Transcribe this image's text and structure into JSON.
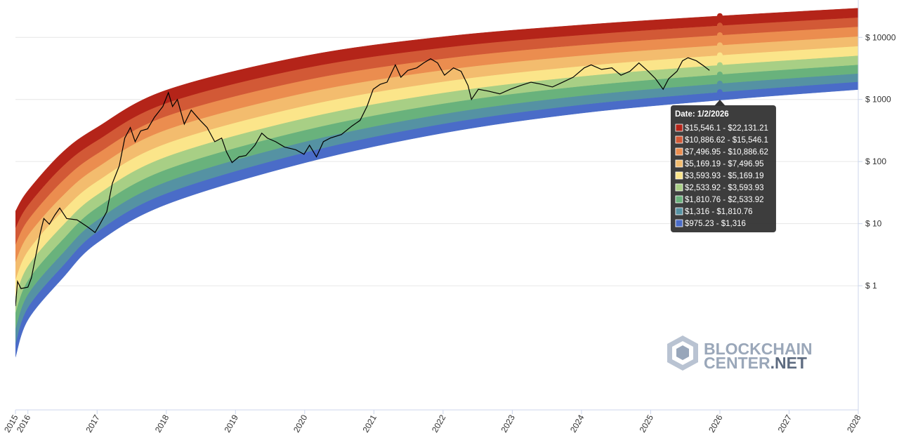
{
  "chart_data": {
    "type": "rainbow",
    "xlim": [
      2015.82,
      2028
    ],
    "xticks": [
      {
        "value": 2015.82,
        "label": "2015"
      },
      2016,
      2017,
      2018,
      2019,
      2020,
      2021,
      2022,
      2023,
      2024,
      2025,
      2026,
      2027,
      2028
    ],
    "ylim": [
      0.01,
      40000
    ],
    "log_y": true,
    "grid": true,
    "yticks": [
      {
        "value": 1,
        "label": "$ 1"
      },
      {
        "value": 10,
        "label": "$ 10"
      },
      {
        "value": 100,
        "label": "$ 100"
      },
      {
        "value": 1000,
        "label": "$ 1000"
      },
      {
        "value": 10000,
        "label": "$ 10000"
      }
    ],
    "bands": {
      "x": [
        2015.82,
        2016,
        2016.5,
        2017,
        2018,
        2020,
        2022,
        2024,
        2026,
        2028
      ],
      "colors": [
        "#4a6cc8",
        "#5592a3",
        "#69b27c",
        "#a8cf85",
        "#fbe58a",
        "#f3bc6e",
        "#eb8d4f",
        "#d25936",
        "#b42419"
      ],
      "boundaries": [
        [
          0.0708,
          0.282,
          1.32,
          4.9,
          20.4,
          95.5,
          288,
          603,
          975.23,
          1445
        ],
        [
          0.119,
          0.447,
          2.07,
          7.39,
          30.7,
          140,
          406,
          824,
          1316,
          1932
        ],
        [
          0.206,
          0.728,
          3.33,
          11.4,
          47.2,
          209,
          585,
          1151,
          1810.76,
          2624
        ],
        [
          0.371,
          1.22,
          5.51,
          18.2,
          74.6,
          321,
          859,
          1641,
          2533.92,
          3639
        ],
        [
          0.679,
          2.08,
          9.31,
          29.3,
          120,
          500,
          1282,
          2366,
          3593.93,
          5105
        ],
        [
          1.27,
          3.64,
          16,
          48.2,
          196,
          791,
          1941,
          3451,
          5169.19,
          7244
        ],
        [
          2.44,
          6.46,
          28.1,
          80.5,
          326,
          1274,
          2979,
          5117,
          7496.95,
          10399
        ],
        [
          4.64,
          11.4,
          48.9,
          134,
          540,
          2042,
          4550,
          7551,
          10886.62,
          14894
        ],
        [
          8.59,
          19.7,
          83.4,
          219,
          875,
          3206,
          6839,
          10965,
          15546.1,
          20989
        ],
        [
          15.8,
          33.9,
          141,
          355,
          1413,
          5012,
          10233,
          15849,
          22131.21,
          29512
        ]
      ]
    },
    "price": {
      "color": "#000000",
      "x": [
        2015.82,
        2015.85,
        2015.9,
        2016,
        2016.05,
        2016.12,
        2016.18,
        2016.23,
        2016.31,
        2016.39,
        2016.46,
        2016.56,
        2016.71,
        2016.86,
        2016.97,
        2017.04,
        2017.14,
        2017.22,
        2017.32,
        2017.4,
        2017.48,
        2017.55,
        2017.63,
        2017.73,
        2017.83,
        2017.95,
        2018.03,
        2018.09,
        2018.16,
        2018.26,
        2018.36,
        2018.49,
        2018.59,
        2018.7,
        2018.8,
        2018.87,
        2018.95,
        2019.05,
        2019.15,
        2019.28,
        2019.38,
        2019.46,
        2019.58,
        2019.71,
        2019.87,
        2019.99,
        2020.07,
        2020.17,
        2020.27,
        2020.37,
        2020.53,
        2020.68,
        2020.8,
        2020.9,
        2020.99,
        2021.09,
        2021.19,
        2021.31,
        2021.39,
        2021.49,
        2021.62,
        2021.72,
        2021.82,
        2021.92,
        2022.02,
        2022.15,
        2022.26,
        2022.36,
        2022.41,
        2022.51,
        2022.66,
        2022.82,
        2022.97,
        2023.12,
        2023.27,
        2023.43,
        2023.58,
        2023.73,
        2023.88,
        2024.04,
        2024.14,
        2024.29,
        2024.44,
        2024.57,
        2024.7,
        2024.83,
        2024.95,
        2025.07,
        2025.18,
        2025.26,
        2025.38,
        2025.46,
        2025.54,
        2025.66,
        2025.77,
        2025.85
      ],
      "values": [
        0.47,
        1.17,
        0.9,
        0.95,
        1.33,
        3.3,
        7.2,
        12.1,
        9.8,
        13.8,
        17.8,
        12.1,
        11.5,
        8.9,
        7.2,
        9.8,
        15.6,
        44.4,
        84.8,
        239,
        353,
        209,
        312,
        336,
        520,
        770,
        1290,
        770,
        1000,
        401,
        674,
        460,
        353,
        209,
        239,
        143,
        96.5,
        119,
        125,
        183,
        287,
        239,
        209,
        171,
        155,
        131,
        183,
        119,
        209,
        239,
        272,
        372,
        460,
        770,
        1460,
        1750,
        1900,
        3610,
        2280,
        2940,
        3230,
        3880,
        4520,
        3880,
        2460,
        3230,
        2840,
        1680,
        1000,
        1460,
        1360,
        1230,
        1460,
        1680,
        1900,
        1750,
        1590,
        1900,
        2280,
        3230,
        3610,
        3050,
        3230,
        2460,
        2840,
        3880,
        2940,
        2160,
        1460,
        2160,
        2840,
        4200,
        4700,
        4200,
        3450,
        2940
      ]
    },
    "tooltip": {
      "title": "Date: 1/2/2026",
      "rows": [
        {
          "text": "$15,546.1 - $22,131.21",
          "color": "#b42419"
        },
        {
          "text": "$10,886.62 - $15,546.1",
          "color": "#d25936"
        },
        {
          "text": "$7,496.95 - $10,886.62",
          "color": "#eb8d4f"
        },
        {
          "text": "$5,169.19 - $7,496.95",
          "color": "#f3bc6e"
        },
        {
          "text": "$3,593.93 - $5,169.19",
          "color": "#fbe58a"
        },
        {
          "text": "$2,533.92 - $3,593.93",
          "color": "#a8cf85"
        },
        {
          "text": "$1,810.76 - $2,533.92",
          "color": "#69b27c"
        },
        {
          "text": "$1,316 - $1,810.76",
          "color": "#5592a3"
        },
        {
          "text": "$975.23 - $1,316",
          "color": "#4a6cc8"
        }
      ]
    }
  },
  "logo": {
    "line1": "BLOCKCHAIN",
    "line2": "CENTER",
    "suffix": ".NET"
  }
}
